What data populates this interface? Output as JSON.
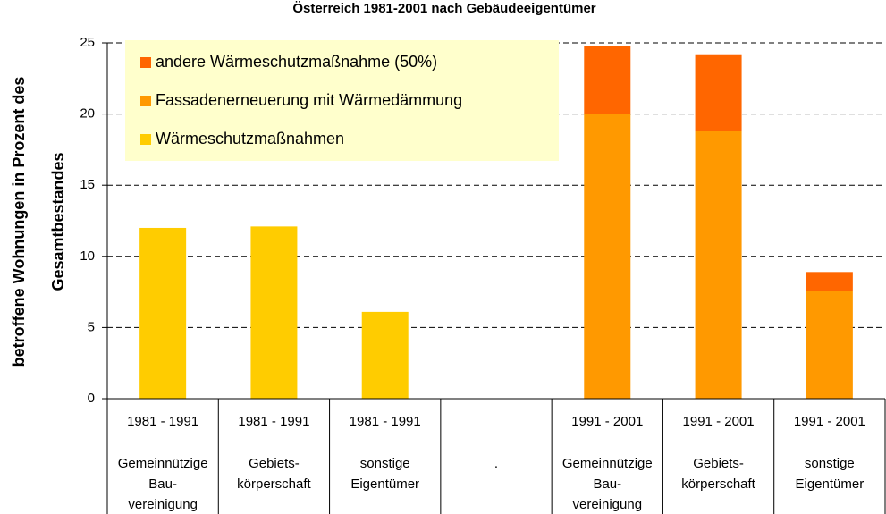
{
  "chart_data": {
    "type": "stacked_bar",
    "title": "Österreich 1981-2001 nach Gebäudeeigentümer",
    "y_label": [
      "betroffene Wohnungen in Prozent des",
      "Gesamtbestandes"
    ],
    "categories": [
      "1981 - 1991",
      "1981 - 1991",
      "1981 - 1991",
      null,
      "1991 - 2001",
      "1991 - 2001",
      "1991 - 2001"
    ],
    "category_groups": [
      [
        "Gemeinnützige",
        "Bau-",
        "vereinigung"
      ],
      [
        "Gebiets-",
        "körperschaft"
      ],
      [
        "sonstige",
        "Eigentümer"
      ],
      [
        "."
      ],
      [
        "Gemeinnützige",
        "Bau-",
        "vereinigung"
      ],
      [
        "Gebiets-",
        "körperschaft"
      ],
      [
        "sonstige",
        "Eigentümer"
      ]
    ],
    "series": [
      {
        "name": "Wärmeschutzmaßnahmen",
        "color": "#ffcc00",
        "values": [
          12,
          12.1,
          6.1,
          null,
          null,
          null,
          null
        ]
      },
      {
        "name": "Fassadenerneuerung mit Wärmedämmung",
        "color": "#ff9900",
        "values": [
          null,
          null,
          null,
          null,
          20,
          18.8,
          7.6
        ]
      },
      {
        "name": "andere Wärmeschutzmaßnahme (50%)",
        "color": "#ff6600",
        "values": [
          null,
          null,
          null,
          null,
          4.8,
          5.4,
          1.3
        ]
      }
    ],
    "ylim": [
      0,
      25
    ],
    "yticks": [
      0,
      5,
      10,
      15,
      20,
      25
    ],
    "grid": true,
    "legend": "top-left"
  }
}
